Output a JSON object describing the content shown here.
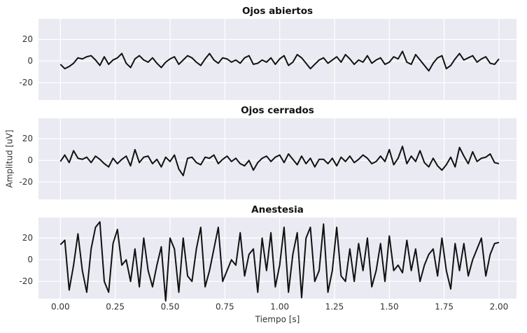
{
  "chart_data": [
    {
      "type": "line",
      "title": "Ojos abiertos",
      "x": [
        0,
        0.02,
        0.04,
        0.06,
        0.08,
        0.1,
        0.12,
        0.14,
        0.16,
        0.18,
        0.2,
        0.22,
        0.24,
        0.26,
        0.28,
        0.3,
        0.32,
        0.34,
        0.36,
        0.38,
        0.4,
        0.42,
        0.44,
        0.46,
        0.48,
        0.5,
        0.52,
        0.54,
        0.56,
        0.58,
        0.6,
        0.62,
        0.64,
        0.66,
        0.68,
        0.7,
        0.72,
        0.74,
        0.76,
        0.78,
        0.8,
        0.82,
        0.84,
        0.86,
        0.88,
        0.9,
        0.92,
        0.94,
        0.96,
        0.98,
        1,
        1.02,
        1.04,
        1.06,
        1.08,
        1.1,
        1.12,
        1.14,
        1.16,
        1.18,
        1.2,
        1.22,
        1.24,
        1.26,
        1.28,
        1.3,
        1.32,
        1.34,
        1.36,
        1.38,
        1.4,
        1.42,
        1.44,
        1.46,
        1.48,
        1.5,
        1.52,
        1.54,
        1.56,
        1.58,
        1.6,
        1.62,
        1.64,
        1.66,
        1.68,
        1.7,
        1.72,
        1.74,
        1.76,
        1.78,
        1.8,
        1.82,
        1.84,
        1.86,
        1.88,
        1.9,
        1.92,
        1.94,
        1.96,
        1.98,
        2
      ],
      "series": [
        {
          "name": null,
          "color": "#111111",
          "values": [
            -3,
            -7,
            -5,
            -2,
            3,
            2,
            4,
            5,
            1,
            -4,
            4,
            -3,
            1,
            3,
            7,
            -2,
            -6,
            2,
            5,
            1,
            -1,
            3,
            -2,
            -6,
            -1,
            2,
            4,
            -3,
            1,
            5,
            3,
            -1,
            -4,
            2,
            7,
            1,
            -2,
            3,
            2,
            -1,
            1,
            -2,
            3,
            5,
            -3,
            -2,
            1,
            -1,
            3,
            -3,
            2,
            5,
            -4,
            -1,
            6,
            3,
            -2,
            -7,
            -3,
            1,
            3,
            -2,
            1,
            4,
            -1,
            6,
            2,
            -3,
            1,
            -1,
            5,
            -2,
            1,
            3,
            -3,
            -1,
            4,
            2,
            9,
            -1,
            -3,
            6,
            1,
            -4,
            -9,
            -2,
            3,
            5,
            -7,
            -4,
            2,
            7,
            1,
            3,
            5,
            -1,
            2,
            4,
            -2,
            -3,
            2
          ]
        }
      ],
      "xlim": [
        -0.1,
        2.08
      ],
      "ylim": [
        -36,
        39
      ],
      "yticks": [
        -20,
        0,
        20
      ],
      "xticks": [
        {
          "value": 0,
          "label": "0.00"
        },
        {
          "value": 0.25,
          "label": "0.25"
        },
        {
          "value": 0.5,
          "label": "0.50"
        },
        {
          "value": 0.75,
          "label": "0.75"
        },
        {
          "value": 1,
          "label": "1.00"
        },
        {
          "value": 1.25,
          "label": "1.25"
        },
        {
          "value": 1.5,
          "label": "1.50"
        },
        {
          "value": 1.75,
          "label": "1.75"
        },
        {
          "value": 2,
          "label": "2.00"
        }
      ],
      "grid": true
    },
    {
      "type": "line",
      "title": "Ojos cerrados",
      "ylabel": "Amplitud [uV]",
      "x": [
        0,
        0.02,
        0.04,
        0.06,
        0.08,
        0.1,
        0.12,
        0.14,
        0.16,
        0.18,
        0.2,
        0.22,
        0.24,
        0.26,
        0.28,
        0.3,
        0.32,
        0.34,
        0.36,
        0.38,
        0.4,
        0.42,
        0.44,
        0.46,
        0.48,
        0.5,
        0.52,
        0.54,
        0.56,
        0.58,
        0.6,
        0.62,
        0.64,
        0.66,
        0.68,
        0.7,
        0.72,
        0.74,
        0.76,
        0.78,
        0.8,
        0.82,
        0.84,
        0.86,
        0.88,
        0.9,
        0.92,
        0.94,
        0.96,
        0.98,
        1,
        1.02,
        1.04,
        1.06,
        1.08,
        1.1,
        1.12,
        1.14,
        1.16,
        1.18,
        1.2,
        1.22,
        1.24,
        1.26,
        1.28,
        1.3,
        1.32,
        1.34,
        1.36,
        1.38,
        1.4,
        1.42,
        1.44,
        1.46,
        1.48,
        1.5,
        1.52,
        1.54,
        1.56,
        1.58,
        1.6,
        1.62,
        1.64,
        1.66,
        1.68,
        1.7,
        1.72,
        1.74,
        1.76,
        1.78,
        1.8,
        1.82,
        1.84,
        1.86,
        1.88,
        1.9,
        1.92,
        1.94,
        1.96,
        1.98,
        2
      ],
      "series": [
        {
          "name": null,
          "color": "#111111",
          "values": [
            -1,
            5,
            -2,
            9,
            2,
            1,
            3,
            -2,
            4,
            1,
            -3,
            -6,
            2,
            -3,
            1,
            4,
            -5,
            10,
            -2,
            3,
            4,
            -3,
            1,
            -6,
            3,
            -1,
            5,
            -8,
            -14,
            2,
            3,
            -2,
            -4,
            3,
            2,
            5,
            -3,
            1,
            4,
            -1,
            2,
            -3,
            -5,
            0,
            -9,
            -2,
            2,
            4,
            -1,
            3,
            5,
            -2,
            6,
            1,
            -4,
            4,
            -3,
            2,
            -6,
            1,
            1,
            -3,
            2,
            -5,
            3,
            -1,
            4,
            -2,
            1,
            5,
            2,
            -3,
            -1,
            4,
            -1,
            10,
            -4,
            2,
            13,
            -3,
            4,
            -1,
            9,
            -2,
            -6,
            2,
            -5,
            -9,
            -4,
            3,
            -6,
            12,
            4,
            -3,
            8,
            -1,
            2,
            3,
            6,
            -2,
            -3
          ]
        }
      ],
      "xlim": [
        -0.1,
        2.08
      ],
      "ylim": [
        -36,
        39
      ],
      "yticks": [
        -20,
        0,
        20
      ],
      "xticks": [
        {
          "value": 0,
          "label": "0.00"
        },
        {
          "value": 0.25,
          "label": "0.25"
        },
        {
          "value": 0.5,
          "label": "0.50"
        },
        {
          "value": 0.75,
          "label": "0.75"
        },
        {
          "value": 1,
          "label": "1.00"
        },
        {
          "value": 1.25,
          "label": "1.25"
        },
        {
          "value": 1.5,
          "label": "1.50"
        },
        {
          "value": 1.75,
          "label": "1.75"
        },
        {
          "value": 2,
          "label": "2.00"
        }
      ],
      "grid": true
    },
    {
      "type": "line",
      "title": "Anestesia",
      "xlabel": "Tiempo [s]",
      "x": [
        0,
        0.02,
        0.04,
        0.06,
        0.08,
        0.1,
        0.12,
        0.14,
        0.16,
        0.18,
        0.2,
        0.22,
        0.24,
        0.26,
        0.28,
        0.3,
        0.32,
        0.34,
        0.36,
        0.38,
        0.4,
        0.42,
        0.44,
        0.46,
        0.48,
        0.5,
        0.52,
        0.54,
        0.56,
        0.58,
        0.6,
        0.62,
        0.64,
        0.66,
        0.68,
        0.7,
        0.72,
        0.74,
        0.76,
        0.78,
        0.8,
        0.82,
        0.84,
        0.86,
        0.88,
        0.9,
        0.92,
        0.94,
        0.96,
        0.98,
        1,
        1.02,
        1.04,
        1.06,
        1.08,
        1.1,
        1.12,
        1.14,
        1.16,
        1.18,
        1.2,
        1.22,
        1.24,
        1.26,
        1.28,
        1.3,
        1.32,
        1.34,
        1.36,
        1.38,
        1.4,
        1.42,
        1.44,
        1.46,
        1.48,
        1.5,
        1.52,
        1.54,
        1.56,
        1.58,
        1.6,
        1.62,
        1.64,
        1.66,
        1.68,
        1.7,
        1.72,
        1.74,
        1.76,
        1.78,
        1.8,
        1.82,
        1.84,
        1.86,
        1.88,
        1.9,
        1.92,
        1.94,
        1.96,
        1.98,
        2
      ],
      "series": [
        {
          "name": null,
          "color": "#111111",
          "values": [
            14,
            18,
            -28,
            -5,
            24,
            -10,
            -30,
            10,
            30,
            35,
            -20,
            -30,
            15,
            28,
            -5,
            0,
            -20,
            10,
            -25,
            20,
            -10,
            -25,
            -5,
            12,
            -38,
            20,
            10,
            -30,
            20,
            -15,
            -20,
            10,
            30,
            -25,
            -10,
            10,
            30,
            -20,
            -10,
            0,
            -5,
            25,
            -15,
            5,
            10,
            -30,
            20,
            -10,
            25,
            -25,
            -5,
            30,
            -30,
            5,
            25,
            -35,
            20,
            30,
            -20,
            -10,
            33,
            -30,
            -10,
            30,
            -15,
            -20,
            10,
            -20,
            15,
            -10,
            20,
            -25,
            -10,
            15,
            -20,
            22,
            -10,
            -5,
            -12,
            18,
            -10,
            10,
            -20,
            -5,
            5,
            10,
            -15,
            20,
            -10,
            -27,
            15,
            -10,
            15,
            -15,
            0,
            10,
            20,
            -15,
            5,
            15,
            16
          ]
        }
      ],
      "xlim": [
        -0.1,
        2.08
      ],
      "ylim": [
        -36,
        39
      ],
      "yticks": [
        -20,
        0,
        20
      ],
      "xticks": [
        {
          "value": 0,
          "label": "0.00"
        },
        {
          "value": 0.25,
          "label": "0.25"
        },
        {
          "value": 0.5,
          "label": "0.50"
        },
        {
          "value": 0.75,
          "label": "0.75"
        },
        {
          "value": 1,
          "label": "1.00"
        },
        {
          "value": 1.25,
          "label": "1.25"
        },
        {
          "value": 1.5,
          "label": "1.50"
        },
        {
          "value": 1.75,
          "label": "1.75"
        },
        {
          "value": 2,
          "label": "2.00"
        }
      ],
      "grid": true
    }
  ]
}
